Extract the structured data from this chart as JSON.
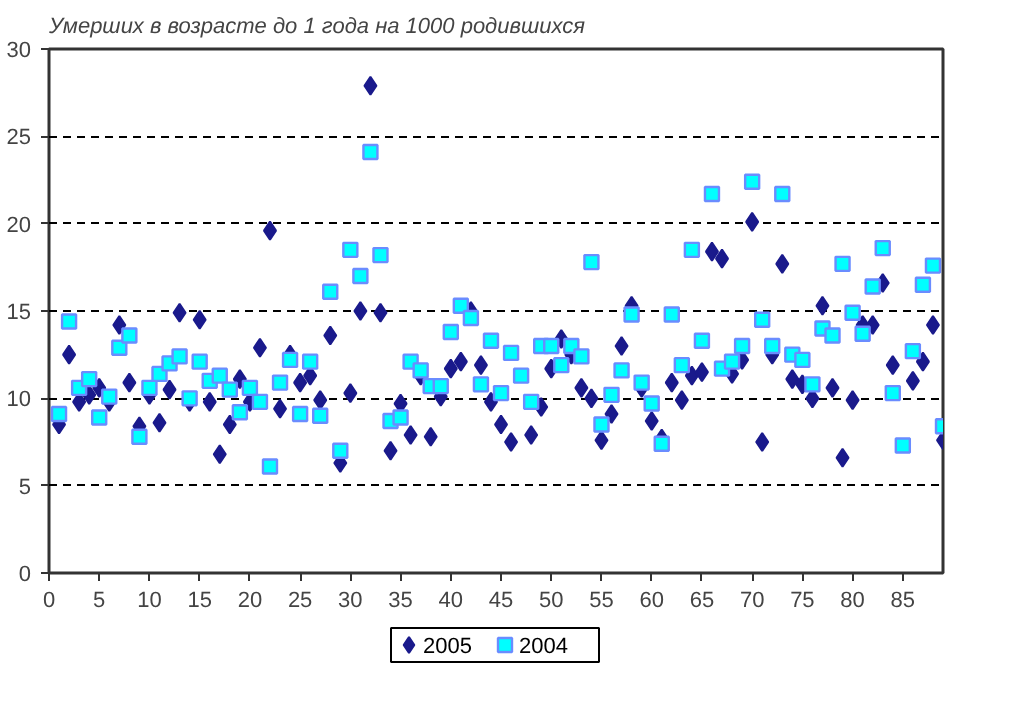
{
  "chart_data": {
    "type": "scatter",
    "title": "Умерших в возрасте до 1 года на 1000 родившихся",
    "x": [
      1,
      2,
      3,
      4,
      5,
      6,
      7,
      8,
      9,
      10,
      11,
      12,
      13,
      14,
      15,
      16,
      17,
      18,
      19,
      20,
      21,
      22,
      23,
      24,
      25,
      26,
      27,
      28,
      29,
      30,
      31,
      32,
      33,
      34,
      35,
      36,
      37,
      38,
      39,
      40,
      41,
      42,
      43,
      44,
      45,
      46,
      47,
      48,
      49,
      50,
      51,
      52,
      53,
      54,
      55,
      56,
      57,
      58,
      59,
      60,
      61,
      62,
      63,
      64,
      65,
      66,
      67,
      68,
      69,
      70,
      71,
      72,
      73,
      74,
      75,
      76,
      77,
      78,
      79,
      80,
      81,
      82,
      83,
      84,
      85,
      86,
      87,
      88,
      89
    ],
    "series": [
      {
        "name": "2005",
        "color": "#1a1a8c",
        "marker": "diamond",
        "values": [
          8.5,
          12.5,
          9.8,
          10.2,
          10.6,
          9.8,
          14.2,
          10.9,
          8.4,
          10.2,
          8.6,
          10.5,
          14.9,
          9.8,
          14.5,
          9.8,
          6.8,
          8.5,
          11.1,
          9.8,
          12.9,
          19.6,
          9.4,
          12.5,
          10.9,
          11.3,
          9.9,
          13.6,
          6.3,
          10.3,
          15.0,
          27.9,
          14.9,
          7.0,
          9.7,
          7.9,
          11.3,
          7.8,
          10.1,
          11.7,
          12.1,
          15.0,
          11.9,
          9.8,
          8.5,
          7.5,
          null,
          7.9,
          9.5,
          11.7,
          13.4,
          12.5,
          10.6,
          10.0,
          7.6,
          9.1,
          13.0,
          15.3,
          10.6,
          8.7,
          7.7,
          10.9,
          9.9,
          11.3,
          11.5,
          18.4,
          18.0,
          11.4,
          12.2,
          20.1,
          7.5,
          12.5,
          17.7,
          11.1,
          10.8,
          10.0,
          15.3,
          10.6,
          6.6,
          9.9,
          14.2,
          14.2,
          16.6,
          11.9,
          null,
          11.0,
          12.1,
          14.2,
          7.6
        ]
      },
      {
        "name": "2004",
        "color": "#00ffff",
        "marker": "square",
        "values": [
          9.1,
          14.4,
          10.6,
          11.1,
          8.9,
          10.1,
          12.9,
          13.6,
          7.8,
          10.6,
          11.4,
          12.0,
          12.4,
          10.0,
          12.1,
          11.0,
          11.3,
          10.5,
          9.2,
          10.6,
          9.8,
          6.1,
          10.9,
          12.2,
          9.1,
          12.1,
          9.0,
          16.1,
          7.0,
          18.5,
          17.0,
          24.1,
          18.2,
          8.7,
          8.9,
          12.1,
          11.6,
          10.7,
          10.7,
          13.8,
          15.3,
          14.6,
          10.8,
          13.3,
          10.3,
          12.6,
          11.3,
          9.8,
          13.0,
          13.0,
          11.9,
          13.0,
          12.4,
          17.8,
          8.5,
          10.2,
          11.6,
          14.8,
          10.9,
          9.7,
          7.4,
          14.8,
          11.9,
          18.5,
          13.3,
          21.7,
          11.7,
          12.1,
          13.0,
          22.4,
          14.5,
          13.0,
          21.7,
          12.5,
          12.2,
          10.8,
          14.0,
          13.6,
          17.7,
          14.9,
          13.7,
          16.4,
          18.6,
          10.3,
          7.3,
          12.7,
          16.5,
          17.6,
          8.4
        ]
      }
    ],
    "xlim": [
      0,
      89
    ],
    "xticks": [
      0,
      5,
      10,
      15,
      20,
      25,
      30,
      35,
      40,
      45,
      50,
      55,
      60,
      65,
      70,
      75,
      80,
      85
    ],
    "ylim": [
      0,
      30
    ],
    "yticks": [
      0,
      5,
      10,
      15,
      20,
      25,
      30
    ],
    "grid": "y",
    "legend": "bottom"
  }
}
